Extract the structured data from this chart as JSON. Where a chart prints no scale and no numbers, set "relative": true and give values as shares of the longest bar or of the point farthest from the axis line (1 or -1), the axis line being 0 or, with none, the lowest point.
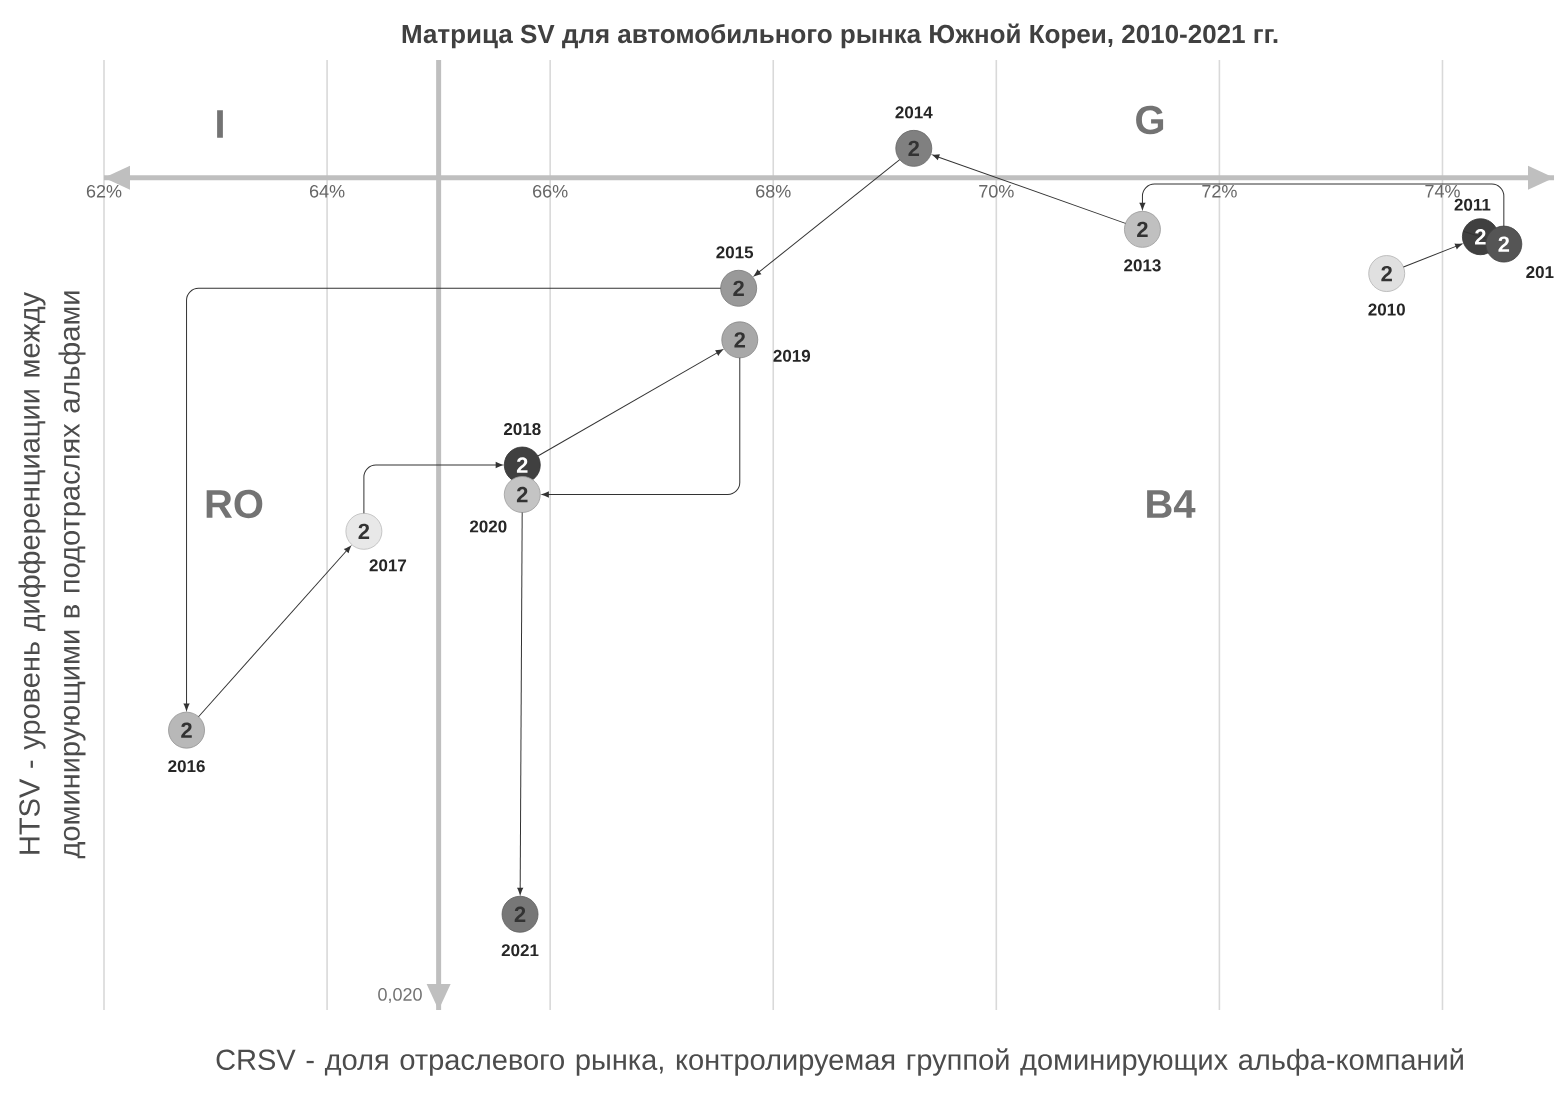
{
  "chart_data": {
    "type": "scatter",
    "title": "Матрица SV для автомобильного рынка Южной Кореи, 2010-2021 гг.",
    "xlabel": "CRSV - доля отраслевого рынка, контролируемая группой доминирующих альфа-компаний",
    "ylabel": "HTSV - уровень дифференциации между доминирующими в подотраслях альфами",
    "relative": true,
    "xlim": [
      62,
      75
    ],
    "xticks": [
      {
        "value": 62,
        "label": "62%"
      },
      {
        "value": 64,
        "label": "64%"
      },
      {
        "value": 66,
        "label": "66%"
      },
      {
        "value": 68,
        "label": "68%"
      },
      {
        "value": 70,
        "label": "70%"
      },
      {
        "value": 72,
        "label": "72%"
      },
      {
        "value": 74,
        "label": "74%"
      }
    ],
    "grid": "x",
    "marker": "circle",
    "series": [
      {
        "x": [
          73.5,
          74.34,
          74.55,
          71.31,
          69.26,
          67.69,
          62.74,
          64.33,
          65.75,
          67.7,
          65.75,
          65.73
        ],
        "values": [
          -0.13,
          -0.08,
          -0.09,
          -0.07,
          0.04,
          -0.15,
          -0.75,
          -0.48,
          -0.39,
          -0.22,
          -0.43,
          -1
        ],
        "colors": [
          "#e0e0e0",
          "#404040",
          "#555555",
          "#c0c0c0",
          "#808080",
          "#999999",
          "#b8b8b8",
          "#e8e8e8",
          "#404040",
          "#a8a8a8",
          "#c4c4c4",
          "#777777"
        ]
      }
    ],
    "ref_lines": [
      {
        "axis": "x",
        "value": 65,
        "color": "#bfbfbf"
      }
    ],
    "annotations": [
      "I",
      "G",
      "RO",
      "B4",
      "0,020",
      "2010",
      "2011",
      "201",
      "2013",
      "2014",
      "2015",
      "2016",
      "2017",
      "2018",
      "2019",
      "2020",
      "2021",
      {
        "text": "2",
        "x": 73.5,
        "y": -0.13
      },
      {
        "text": "2",
        "x": 74.34,
        "y": -0.08
      },
      {
        "text": "2",
        "x": 74.55,
        "y": -0.09
      },
      {
        "text": "2",
        "x": 71.31,
        "y": -0.07
      },
      {
        "text": "2",
        "x": 69.26,
        "y": 0.04
      },
      {
        "text": "2",
        "x": 67.69,
        "y": -0.15
      },
      {
        "text": "2",
        "x": 62.74,
        "y": -0.75
      },
      {
        "text": "2",
        "x": 64.33,
        "y": -0.48
      },
      {
        "text": "2",
        "x": 65.75,
        "y": -0.39
      },
      {
        "text": "2",
        "x": 67.7,
        "y": -0.22
      },
      {
        "text": "2",
        "x": 65.75,
        "y": -0.43
      },
      {
        "text": "2",
        "x": 65.73,
        "y": -1
      }
    ]
  }
}
